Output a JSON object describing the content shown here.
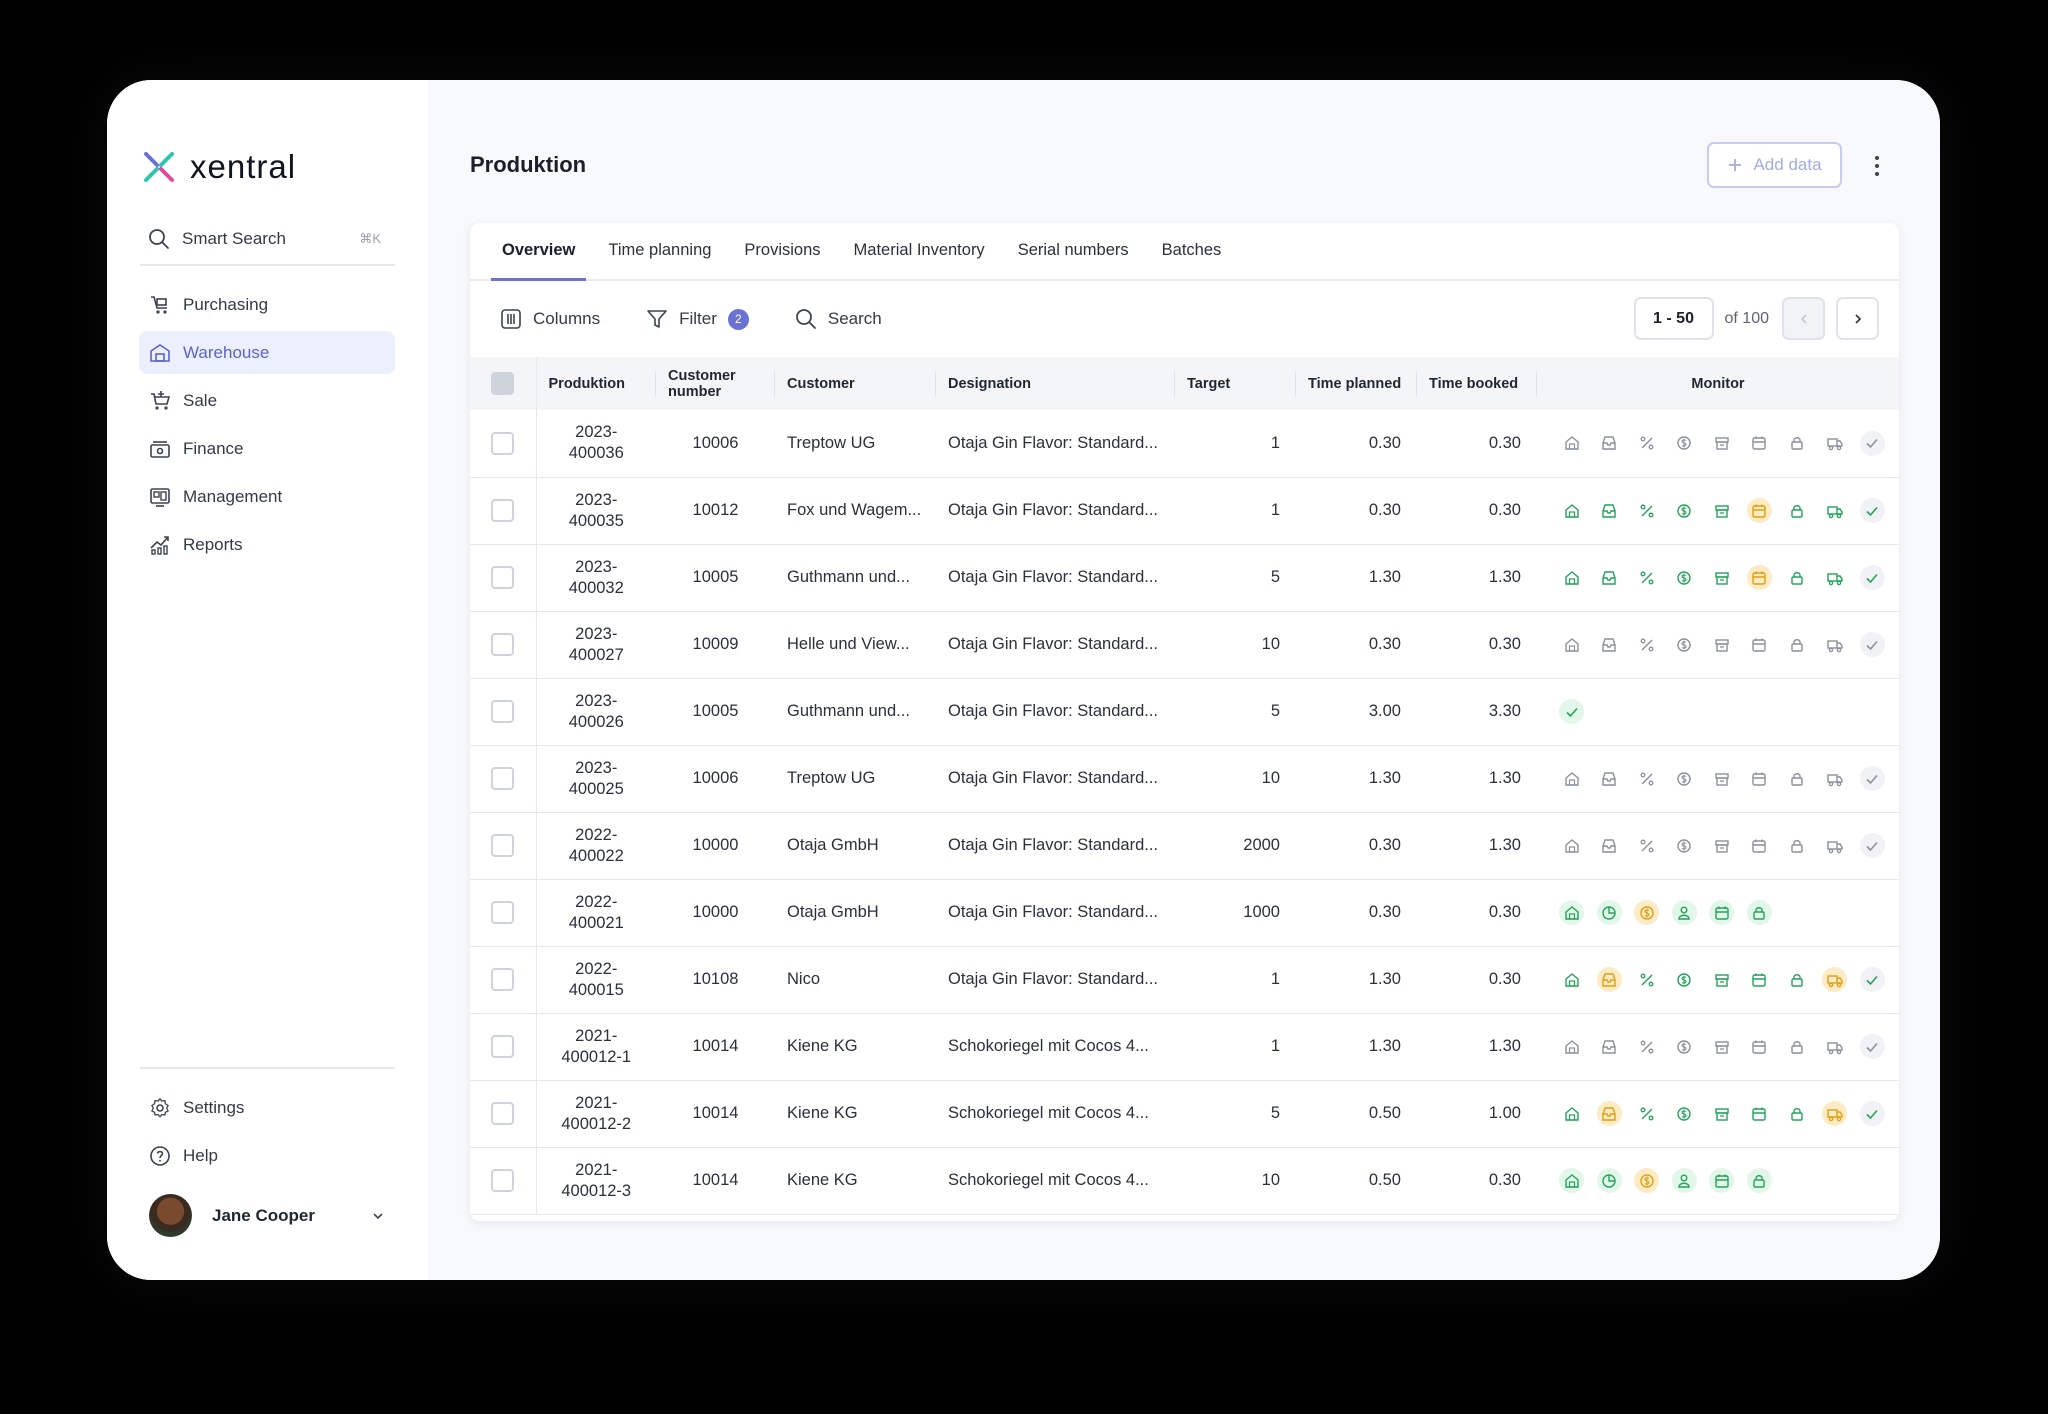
{
  "app": {
    "brand": "xentral",
    "accent": "#6a72d6"
  },
  "sidebar": {
    "smart_search": {
      "label": "Smart Search",
      "shortcut": "⌘K"
    },
    "items": [
      {
        "label": "Purchasing",
        "icon": "cart-icon"
      },
      {
        "label": "Warehouse",
        "icon": "warehouse-icon",
        "active": true
      },
      {
        "label": "Sale",
        "icon": "shopping-cart-icon"
      },
      {
        "label": "Finance",
        "icon": "finance-icon"
      },
      {
        "label": "Management",
        "icon": "management-icon"
      },
      {
        "label": "Reports",
        "icon": "reports-icon"
      }
    ],
    "bottom": [
      {
        "label": "Settings",
        "icon": "gear-icon"
      },
      {
        "label": "Help",
        "icon": "help-icon"
      }
    ],
    "user": {
      "name": "Jane Cooper"
    }
  },
  "header": {
    "title": "Produktion",
    "add_label": "Add data"
  },
  "tabs": [
    "Overview",
    "Time planning",
    "Provisions",
    "Material Inventory",
    "Serial numbers",
    "Batches"
  ],
  "toolbar": {
    "columns": "Columns",
    "filter": "Filter",
    "filter_count": "2",
    "search": "Search"
  },
  "pager": {
    "range": "1 - 50",
    "of": "of 100"
  },
  "table": {
    "headers": {
      "produktion": "Produktion",
      "customer_number": "Customer number",
      "customer": "Customer",
      "designation": "Designation",
      "target": "Target",
      "time_planned": "Time planned",
      "time_booked": "Time booked",
      "monitor": "Monitor"
    },
    "rows": [
      {
        "prod1": "2023-",
        "prod2": "400036",
        "cn": "10006",
        "customer": "Treptow UG",
        "designation": "Otaja Gin Flavor: Standard...",
        "target": "1",
        "planned": "0.30",
        "booked": "0.30",
        "monitor": [
          "g",
          "g",
          "g",
          "g",
          "g",
          "g",
          "g",
          "g",
          "g"
        ]
      },
      {
        "prod1": "2023-",
        "prod2": "400035",
        "cn": "10012",
        "customer": "Fox und Wagem...",
        "designation": "Otaja Gin Flavor: Standard...",
        "target": "1",
        "planned": "0.30",
        "booked": "0.30",
        "monitor": [
          "G",
          "G",
          "G",
          "G",
          "G",
          "O",
          "G",
          "G",
          "G"
        ]
      },
      {
        "prod1": "2023-",
        "prod2": "400032",
        "cn": "10005",
        "customer": "Guthmann und...",
        "designation": "Otaja Gin Flavor: Standard...",
        "target": "5",
        "planned": "1.30",
        "booked": "1.30",
        "monitor": [
          "G",
          "G",
          "G",
          "G",
          "G",
          "O",
          "G",
          "G",
          "G"
        ]
      },
      {
        "prod1": "2023-",
        "prod2": "400027",
        "cn": "10009",
        "customer": "Helle und View...",
        "designation": "Otaja Gin Flavor: Standard...",
        "target": "10",
        "planned": "0.30",
        "booked": "0.30",
        "monitor": [
          "g",
          "g",
          "g",
          "g",
          "g",
          "g",
          "g",
          "g",
          "g"
        ]
      },
      {
        "prod1": "2023-",
        "prod2": "400026",
        "cn": "10005",
        "customer": "Guthmann und...",
        "designation": "Otaja Gin Flavor: Standard...",
        "target": "5",
        "planned": "3.00",
        "booked": "3.30",
        "monitor": [
          "C"
        ]
      },
      {
        "prod1": "2023-",
        "prod2": "400025",
        "cn": "10006",
        "customer": "Treptow UG",
        "designation": "Otaja Gin Flavor: Standard...",
        "target": "10",
        "planned": "1.30",
        "booked": "1.30",
        "monitor": [
          "g",
          "g",
          "g",
          "g",
          "g",
          "g",
          "g",
          "g",
          "g"
        ]
      },
      {
        "prod1": "2022-",
        "prod2": "400022",
        "cn": "10000",
        "customer": "Otaja GmbH",
        "designation": "Otaja Gin Flavor: Standard...",
        "target": "2000",
        "planned": "0.30",
        "booked": "1.30",
        "monitor": [
          "g",
          "g",
          "g",
          "g",
          "g",
          "g",
          "g",
          "g",
          "g"
        ]
      },
      {
        "prod1": "2022-",
        "prod2": "400021",
        "cn": "10000",
        "customer": "Otaja GmbH",
        "designation": "Otaja Gin Flavor: Standard...",
        "target": "1000",
        "planned": "0.30",
        "booked": "0.30",
        "monitor": [
          "G",
          "P",
          "O$",
          "U",
          "GB",
          "GL"
        ]
      },
      {
        "prod1": "2022-",
        "prod2": "400015",
        "cn": "10108",
        "customer": "Nico",
        "designation": "Otaja Gin Flavor: Standard...",
        "target": "1",
        "planned": "1.30",
        "booked": "0.30",
        "monitor": [
          "G",
          "Oi",
          "G",
          "G",
          "G",
          "G",
          "G",
          "Ot",
          "G"
        ]
      },
      {
        "prod1": "2021-",
        "prod2": "400012-1",
        "cn": "10014",
        "customer": "Kiene KG",
        "designation": "Schokoriegel mit Cocos 4...",
        "target": "1",
        "planned": "1.30",
        "booked": "1.30",
        "monitor": [
          "g",
          "g",
          "g",
          "g",
          "g",
          "g",
          "g",
          "g",
          "g"
        ]
      },
      {
        "prod1": "2021-",
        "prod2": "400012-2",
        "cn": "10014",
        "customer": "Kiene KG",
        "designation": "Schokoriegel mit Cocos 4...",
        "target": "5",
        "planned": "0.50",
        "booked": "1.00",
        "monitor": [
          "G",
          "Oi",
          "G",
          "G",
          "G",
          "G",
          "G",
          "Ot",
          "G"
        ]
      },
      {
        "prod1": "2021-",
        "prod2": "400012-3",
        "cn": "10014",
        "customer": "Kiene KG",
        "designation": "Schokoriegel mit Cocos 4...",
        "target": "10",
        "planned": "0.50",
        "booked": "0.30",
        "monitor": [
          "G",
          "P",
          "O$",
          "U",
          "GB",
          "GL"
        ]
      }
    ]
  }
}
